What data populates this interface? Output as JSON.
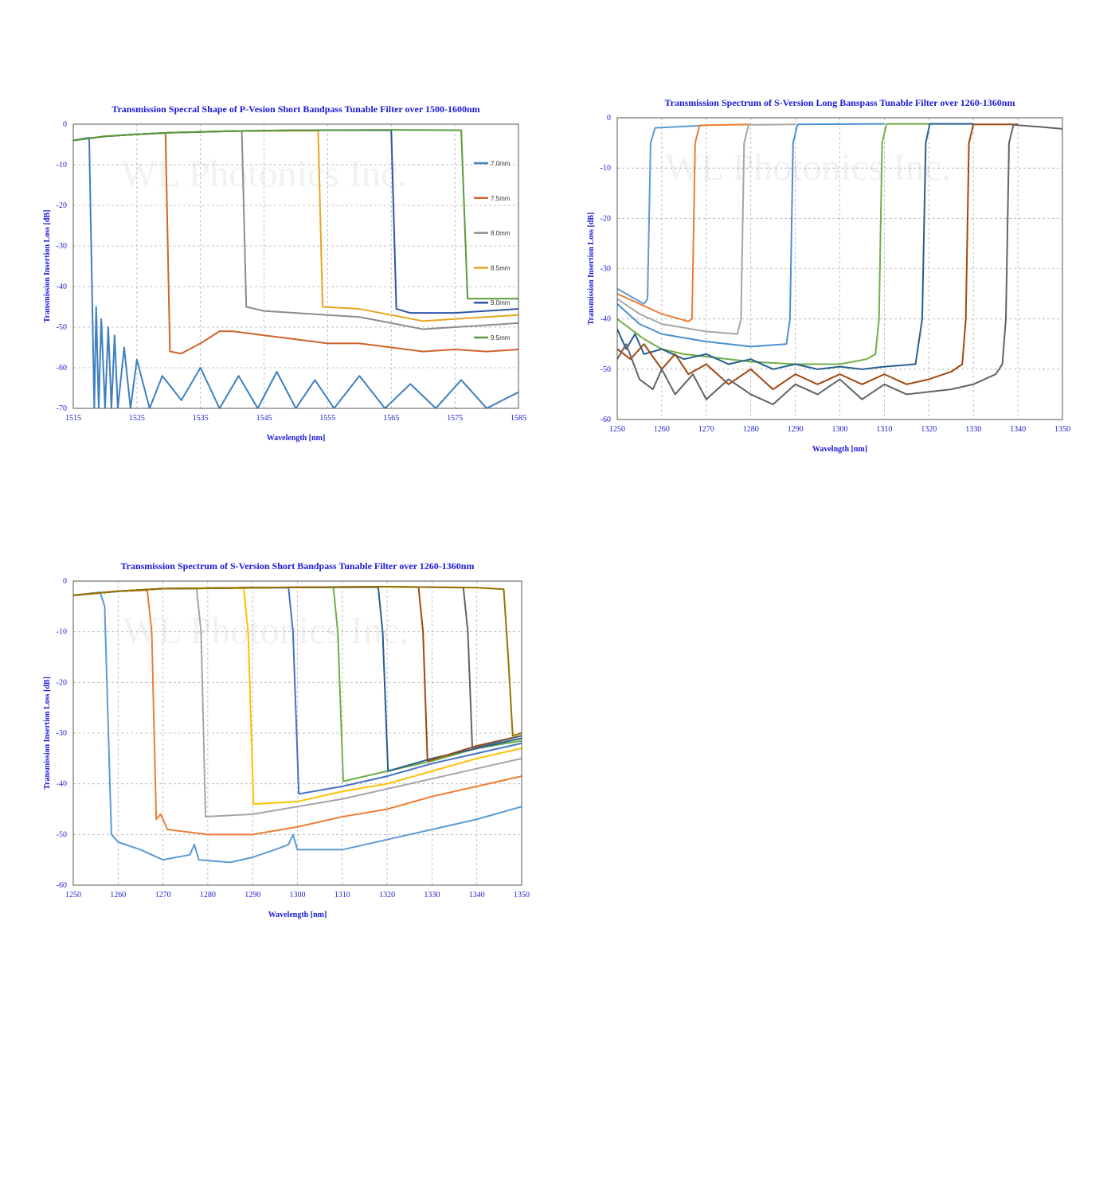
{
  "chart_data": [
    {
      "type": "line",
      "title": "Transmission Specral Shape of P-Vesion Short Bandpass Tunable Filter over 1500-1600nm",
      "x_label": "Wavelength [nm]",
      "y_label": "Transmission Insertion Loss [dB]",
      "watermark": "WL Photonics Inc.",
      "xlim": [
        1515,
        1585
      ],
      "ylim": [
        -70,
        0
      ],
      "xticks": [
        1515,
        1525,
        1535,
        1545,
        1555,
        1565,
        1575,
        1585
      ],
      "yticks": [
        0,
        -10,
        -20,
        -30,
        -40,
        -50,
        -60,
        -70
      ],
      "grid": true,
      "legend": "right",
      "series": [
        {
          "name": "7.0mm",
          "color": "#3f7fbf",
          "x": [
            1515,
            1517.5,
            1518.3,
            1518.6,
            1519,
            1519.4,
            1520,
            1520.5,
            1521,
            1521.5,
            1522,
            1523,
            1524,
            1525,
            1527,
            1529,
            1532,
            1535,
            1538,
            1541,
            1544,
            1547,
            1550,
            1553,
            1556,
            1560,
            1564,
            1568,
            1572,
            1576,
            1580,
            1585
          ],
          "values": [
            -4,
            -3.3,
            -70,
            -45,
            -70,
            -48,
            -70,
            -50,
            -70,
            -52,
            -70,
            -55,
            -70,
            -58,
            -70,
            -62,
            -68,
            -60,
            -70,
            -62,
            -70,
            -61,
            -70,
            -63,
            -70,
            -62,
            -70,
            -64,
            -70,
            -63,
            -70,
            -66
          ]
        },
        {
          "name": "7.5mm",
          "color": "#d0622a",
          "x": [
            1515,
            1520,
            1525,
            1529.5,
            1530.2,
            1532,
            1535,
            1538,
            1540,
            1545,
            1550,
            1555,
            1560,
            1565,
            1570,
            1575,
            1580,
            1585
          ],
          "values": [
            -4,
            -3,
            -2.5,
            -2.2,
            -56,
            -56.5,
            -54,
            -51,
            -51,
            -52,
            -53,
            -54,
            -54,
            -55,
            -56,
            -55.5,
            -56,
            -55.5
          ]
        },
        {
          "name": "8.0mm",
          "color": "#8c8c8c",
          "x": [
            1515,
            1520,
            1525,
            1530,
            1541.5,
            1542.2,
            1545,
            1550,
            1555,
            1560,
            1565,
            1570,
            1575,
            1580,
            1585
          ],
          "values": [
            -4,
            -3,
            -2.5,
            -2.1,
            -1.7,
            -45,
            -46,
            -46.5,
            -47,
            -47.5,
            -49,
            -50.5,
            -50,
            -49.5,
            -49
          ]
        },
        {
          "name": "8.5mm",
          "color": "#e6a520",
          "x": [
            1515,
            1520,
            1525,
            1530,
            1540,
            1553.5,
            1554.2,
            1560,
            1565,
            1570,
            1575,
            1585
          ],
          "values": [
            -4,
            -3,
            -2.5,
            -2.1,
            -1.7,
            -1.6,
            -45,
            -45.5,
            -47,
            -48.5,
            -48,
            -47
          ]
        },
        {
          "name": "9.0mm",
          "color": "#2f55a4",
          "x": [
            1515,
            1520,
            1525,
            1530,
            1540,
            1550,
            1565,
            1565.8,
            1568,
            1575,
            1585
          ],
          "values": [
            -4,
            -3,
            -2.5,
            -2.1,
            -1.7,
            -1.5,
            -1.5,
            -45.5,
            -46.5,
            -46.5,
            -45.5
          ]
        },
        {
          "name": "9.5mm",
          "color": "#5a9a3a",
          "x": [
            1515,
            1520,
            1525,
            1530,
            1540,
            1550,
            1565,
            1576,
            1577,
            1585
          ],
          "values": [
            -4,
            -3,
            -2.5,
            -2.1,
            -1.7,
            -1.5,
            -1.4,
            -1.5,
            -43,
            -43
          ]
        }
      ]
    },
    {
      "type": "line",
      "title": "Transmission Spectrum of S-Version Long Banspass Tunable Filter over 1260-1360nm",
      "x_label": "Wavelngth [nm]",
      "y_label": "Transmission Insertion Loss [dB]",
      "watermark": "WL Photonics Inc.",
      "xlim": [
        1250,
        1350
      ],
      "ylim": [
        -60,
        0
      ],
      "xticks": [
        1250,
        1260,
        1270,
        1280,
        1290,
        1300,
        1310,
        1320,
        1330,
        1340,
        1350
      ],
      "yticks": [
        0,
        -10,
        -20,
        -30,
        -40,
        -50,
        -60
      ],
      "grid": true,
      "series": [
        {
          "color": "#5b9bd5",
          "x": [
            1250,
            1253,
            1256,
            1256.8,
            1257.5,
            1258.5,
            1270
          ],
          "values": [
            -34,
            -35.5,
            -37,
            -36,
            -5,
            -2,
            -1.5
          ]
        },
        {
          "color": "#ed7d31",
          "x": [
            1250,
            1255,
            1260,
            1266,
            1266.8,
            1267.5,
            1268.5,
            1280
          ],
          "values": [
            -35,
            -37,
            -39,
            -40.5,
            -40,
            -5,
            -1.5,
            -1.3
          ]
        },
        {
          "color": "#a5a5a5",
          "x": [
            1250,
            1255,
            1260,
            1270,
            1277,
            1277.8,
            1278.5,
            1279.5,
            1290
          ],
          "values": [
            -36,
            -39,
            -41,
            -42.5,
            -43,
            -40,
            -5,
            -1.4,
            -1.3
          ]
        },
        {
          "color": "#4a90d0",
          "x": [
            1250,
            1255,
            1260,
            1270,
            1280,
            1288,
            1288.8,
            1289.5,
            1290.5,
            1310
          ],
          "values": [
            -37,
            -41,
            -43,
            -44.5,
            -45.5,
            -45,
            -40,
            -5,
            -1.3,
            -1.2
          ]
        },
        {
          "color": "#70ad47",
          "x": [
            1250,
            1253,
            1256,
            1260,
            1265,
            1270,
            1280,
            1290,
            1300,
            1306,
            1308,
            1308.8,
            1309.5,
            1310.5,
            1320
          ],
          "values": [
            -40,
            -42,
            -44,
            -46,
            -47,
            -47.5,
            -48.5,
            -49,
            -49,
            -48,
            -47,
            -40,
            -5,
            -1.2,
            -1.2
          ]
        },
        {
          "color": "#255e91",
          "x": [
            1250,
            1252,
            1254,
            1256,
            1260,
            1265,
            1270,
            1275,
            1280,
            1285,
            1290,
            1295,
            1300,
            1305,
            1310,
            1317,
            1318.5,
            1319.3,
            1320.2,
            1330
          ],
          "values": [
            -42,
            -46,
            -43,
            -47,
            -46,
            -48,
            -47,
            -49,
            -48,
            -50,
            -49,
            -50,
            -49.5,
            -50,
            -49.5,
            -49,
            -40,
            -5,
            -1.2,
            -1.2
          ]
        },
        {
          "color": "#9e480e",
          "x": [
            1250,
            1253,
            1256,
            1260,
            1263,
            1266,
            1270,
            1275,
            1280,
            1285,
            1290,
            1295,
            1300,
            1305,
            1310,
            1315,
            1320,
            1325,
            1327.5,
            1328.3,
            1329,
            1330,
            1340
          ],
          "values": [
            -46,
            -48,
            -45,
            -50,
            -47,
            -51,
            -49,
            -53,
            -50,
            -54,
            -51,
            -53,
            -51,
            -53,
            -51,
            -53,
            -52,
            -50.5,
            -49,
            -40,
            -5,
            -1.3,
            -1.3
          ]
        },
        {
          "color": "#636363",
          "x": [
            1250,
            1252,
            1255,
            1258,
            1260,
            1263,
            1267,
            1270,
            1275,
            1280,
            1285,
            1290,
            1295,
            1300,
            1305,
            1310,
            1315,
            1320,
            1325,
            1330,
            1335,
            1336.5,
            1337.3,
            1338,
            1339,
            1345,
            1350
          ],
          "values": [
            -48,
            -45,
            -52,
            -54,
            -50,
            -55,
            -51,
            -56,
            -52,
            -55,
            -57,
            -53,
            -55,
            -52,
            -56,
            -53,
            -55,
            -54.5,
            -54,
            -53,
            -51,
            -49,
            -40,
            -5,
            -1.4,
            -1.8,
            -2.2
          ]
        }
      ]
    },
    {
      "type": "line",
      "title": "Transmission Spectrum of S-Version Short Bandpass Tunable Filter over 1260-1360nm",
      "x_label": "Wavelength [nm]",
      "y_label": "Transmission Insertion Loss [dB]",
      "watermark": "WL Photonics Inc.",
      "xlim": [
        1250,
        1350
      ],
      "ylim": [
        -60,
        0
      ],
      "xticks": [
        1250,
        1260,
        1270,
        1280,
        1290,
        1300,
        1310,
        1320,
        1330,
        1340,
        1350
      ],
      "yticks": [
        0,
        -10,
        -20,
        -30,
        -40,
        -50,
        -60
      ],
      "grid": true,
      "series": [
        {
          "color": "#5b9bd5",
          "x": [
            1250,
            1256,
            1257,
            1258.5,
            1260,
            1265,
            1270,
            1276,
            1277,
            1278,
            1285,
            1290,
            1295,
            1298,
            1299,
            1300,
            1305,
            1310,
            1320,
            1330,
            1340,
            1350
          ],
          "values": [
            -2.8,
            -2.2,
            -5,
            -50,
            -51.5,
            -53,
            -55,
            -54,
            -52,
            -55,
            -55.5,
            -54.5,
            -53,
            -52,
            -50,
            -53,
            -53,
            -53,
            -51,
            -49,
            -47,
            -44.5
          ]
        },
        {
          "color": "#ed7d31",
          "x": [
            1250,
            1260,
            1266.5,
            1267.5,
            1268.5,
            1269.5,
            1271,
            1280,
            1290,
            1300,
            1310,
            1320,
            1330,
            1340,
            1350
          ],
          "values": [
            -2.8,
            -2,
            -1.8,
            -10,
            -47,
            -46,
            -49,
            -50,
            -50,
            -48.5,
            -46.5,
            -45,
            -42.5,
            -40.5,
            -38.5
          ]
        },
        {
          "color": "#a5a5a5",
          "x": [
            1250,
            1260,
            1270,
            1277.5,
            1278.5,
            1279.5,
            1290,
            1300,
            1310,
            1320,
            1330,
            1340,
            1350
          ],
          "values": [
            -2.8,
            -2,
            -1.5,
            -1.5,
            -10,
            -46.5,
            -46,
            -44.5,
            -43,
            -41,
            -39,
            -37,
            -35
          ]
        },
        {
          "color": "#ffc000",
          "x": [
            1250,
            1260,
            1270,
            1288,
            1289,
            1290.2,
            1300,
            1310,
            1320,
            1330,
            1340,
            1350
          ],
          "values": [
            -2.8,
            -2,
            -1.5,
            -1.4,
            -10,
            -44,
            -43.5,
            -41.5,
            -40,
            -37.5,
            -35,
            -33
          ]
        },
        {
          "color": "#4472c4",
          "x": [
            1250,
            1260,
            1270,
            1290,
            1298,
            1299,
            1300.3,
            1310,
            1320,
            1330,
            1340,
            1350
          ],
          "values": [
            -2.8,
            -2,
            -1.5,
            -1.3,
            -1.3,
            -10,
            -42,
            -40.5,
            -38.5,
            -36,
            -34,
            -32
          ]
        },
        {
          "color": "#70ad47",
          "x": [
            1250,
            1260,
            1270,
            1290,
            1308,
            1309,
            1310.2,
            1320,
            1330,
            1340,
            1350
          ],
          "values": [
            -2.8,
            -2,
            -1.5,
            -1.3,
            -1.2,
            -10,
            -39.5,
            -37.5,
            -35.5,
            -33,
            -31.5
          ]
        },
        {
          "color": "#255e91",
          "x": [
            1250,
            1260,
            1270,
            1290,
            1318,
            1319,
            1320.2,
            1330,
            1340,
            1350
          ],
          "values": [
            -2.8,
            -2,
            -1.5,
            -1.3,
            -1.2,
            -10,
            -37.5,
            -35,
            -33,
            -31
          ]
        },
        {
          "color": "#9e480e",
          "x": [
            1250,
            1260,
            1270,
            1290,
            1320,
            1327,
            1328,
            1329,
            1340,
            1350
          ],
          "values": [
            -2.8,
            -2,
            -1.5,
            -1.3,
            -1.1,
            -1.2,
            -10,
            -35.5,
            -32.5,
            -30.5
          ]
        },
        {
          "color": "#636363",
          "x": [
            1250,
            1260,
            1270,
            1290,
            1320,
            1337,
            1338,
            1339,
            1350
          ],
          "values": [
            -2.8,
            -2,
            -1.5,
            -1.3,
            -1.1,
            -1.3,
            -10,
            -33,
            -30.5
          ]
        },
        {
          "color": "#997300",
          "x": [
            1250,
            1260,
            1270,
            1290,
            1320,
            1340,
            1346,
            1347,
            1348,
            1350
          ],
          "values": [
            -2.8,
            -2,
            -1.5,
            -1.3,
            -1.1,
            -1.3,
            -1.6,
            -15,
            -30.5,
            -30
          ]
        }
      ]
    }
  ]
}
